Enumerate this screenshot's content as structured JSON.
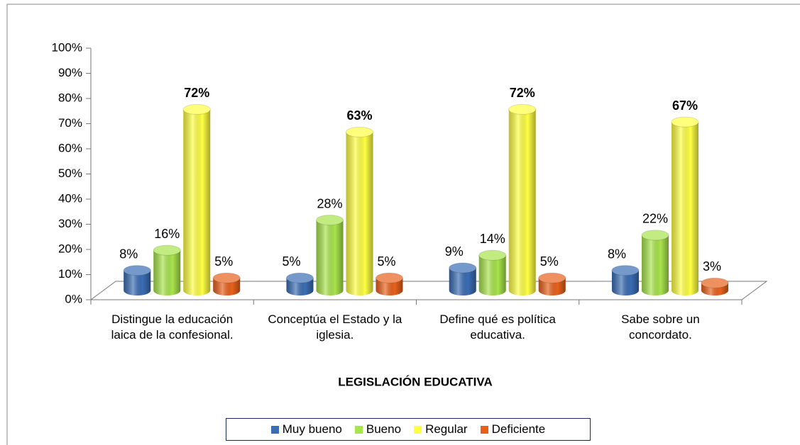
{
  "chart_data": {
    "type": "bar3d",
    "x_label": "LEGISLACIÓN EDUCATIVA",
    "categories": [
      "Distingue la educación laica de la confesional.",
      "Conceptúa el Estado y la iglesia.",
      "Define qué es política educativa.",
      "Sabe sobre un concordato."
    ],
    "series": [
      {
        "name": "Muy bueno",
        "color": "#3a6db4",
        "values": [
          8,
          5,
          9,
          8
        ],
        "value_labels": [
          "8%",
          "5%",
          "9%",
          "8%"
        ]
      },
      {
        "name": "Bueno",
        "color": "#a8e44c",
        "values": [
          16,
          28,
          14,
          22
        ],
        "value_labels": [
          "16%",
          "28%",
          "14%",
          "22%"
        ]
      },
      {
        "name": "Regular",
        "color": "#ffff44",
        "values": [
          72,
          63,
          72,
          67
        ],
        "value_labels": [
          "72%",
          "63%",
          "72%",
          "67%"
        ]
      },
      {
        "name": "Deficiente",
        "color": "#e8611c",
        "values": [
          5,
          5,
          5,
          3
        ],
        "value_labels": [
          "5%",
          "5%",
          "5%",
          "3%"
        ]
      }
    ],
    "ylim": [
      0,
      100
    ],
    "yticks": [
      {
        "value": 0,
        "label": "0%"
      },
      {
        "value": 10,
        "label": "10%"
      },
      {
        "value": 20,
        "label": "20%"
      },
      {
        "value": 30,
        "label": "30%"
      },
      {
        "value": 40,
        "label": "40%"
      },
      {
        "value": 50,
        "label": "50%"
      },
      {
        "value": 60,
        "label": "60%"
      },
      {
        "value": 70,
        "label": "70%"
      },
      {
        "value": 80,
        "label": "80%"
      },
      {
        "value": 90,
        "label": "90%"
      },
      {
        "value": 100,
        "label": "100%"
      }
    ],
    "legend": "bottom"
  }
}
